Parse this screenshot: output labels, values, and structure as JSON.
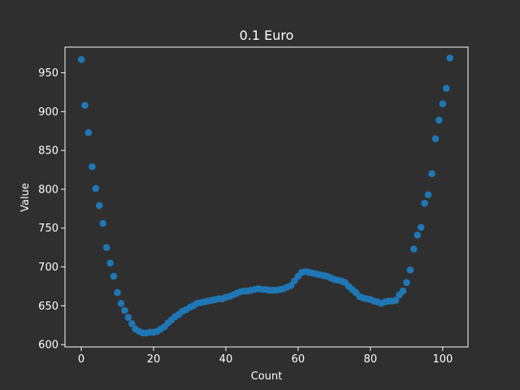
{
  "chart_data": {
    "type": "scatter",
    "title": "0.1 Euro",
    "xlabel": "Count",
    "ylabel": "Value",
    "xlim": [
      -4.5,
      107
    ],
    "ylim": [
      597,
      983
    ],
    "xticks": [
      0,
      20,
      40,
      60,
      80,
      100
    ],
    "yticks": [
      600,
      650,
      700,
      750,
      800,
      850,
      900,
      950
    ],
    "grid": false,
    "colors": {
      "background": "#2f2f2f",
      "axes": "#ffffff",
      "marker": "#1f77b4"
    },
    "series": [
      {
        "x": [
          0,
          1,
          2,
          3,
          4,
          5,
          6,
          7,
          8,
          9,
          10,
          11,
          12,
          13,
          14,
          15,
          16,
          17,
          18,
          19,
          20,
          21,
          22,
          23,
          24,
          25,
          26,
          27,
          28,
          29,
          30,
          31,
          32,
          33,
          34,
          35,
          36,
          37,
          38,
          39,
          40,
          41,
          42,
          43,
          44,
          45,
          46,
          47,
          48,
          49,
          50,
          51,
          52,
          53,
          54,
          55,
          56,
          57,
          58,
          59,
          60,
          61,
          62,
          63,
          64,
          65,
          66,
          67,
          68,
          69,
          70,
          71,
          72,
          73,
          74,
          75,
          76,
          77,
          78,
          79,
          80,
          81,
          82,
          83,
          84,
          85,
          86,
          87,
          88,
          89,
          90,
          91,
          92,
          93,
          94,
          95,
          96,
          97,
          98,
          99,
          100,
          101,
          102
        ],
        "y": [
          967,
          908,
          873,
          829,
          801,
          779,
          756,
          725,
          705,
          688,
          667,
          653,
          644,
          635,
          627,
          620,
          617,
          615,
          615,
          616,
          616,
          617,
          620,
          623,
          628,
          632,
          636,
          639,
          643,
          645,
          648,
          650,
          653,
          654,
          655,
          656,
          657,
          658,
          659,
          659,
          661,
          662,
          664,
          666,
          668,
          669,
          669,
          670,
          671,
          672,
          671,
          671,
          670,
          670,
          670,
          671,
          672,
          674,
          676,
          682,
          688,
          693,
          694,
          693,
          692,
          691,
          690,
          689,
          688,
          686,
          684,
          683,
          682,
          680,
          675,
          671,
          667,
          662,
          660,
          659,
          658,
          656,
          655,
          653,
          655,
          656,
          656,
          657,
          664,
          669,
          680,
          696,
          723,
          741,
          751,
          782,
          793,
          820,
          865,
          889,
          910,
          930,
          969
        ]
      }
    ]
  }
}
